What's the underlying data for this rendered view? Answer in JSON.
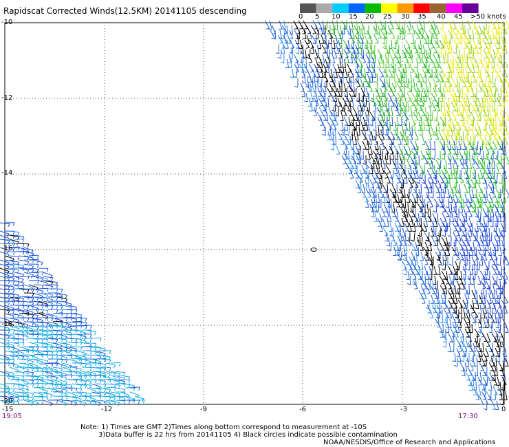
{
  "header": {
    "title": "Rapidscat Corrected Winds(12.5KM) 20141105 descending"
  },
  "legend": {
    "labels": [
      "0",
      "5",
      "10",
      "15",
      "20",
      "25",
      "30",
      "35",
      "40",
      "45",
      ">50 knots"
    ],
    "colors": [
      "#555555",
      "#aaaaaa",
      "#00ccff",
      "#0066ff",
      "#00bb00",
      "#ffff00",
      "#ff9900",
      "#ff0000",
      "#996633",
      "#ff00ff",
      "#660099"
    ]
  },
  "axes": {
    "y_ticks": [
      "-10",
      "-12",
      "-14",
      "-16",
      "-18",
      "-20"
    ],
    "x_ticks": [
      "-15",
      "-12",
      "-9",
      "-6",
      "-3",
      "0"
    ]
  },
  "times": {
    "left": "19:05",
    "right": "17:30"
  },
  "notes": {
    "line1": "Note: 1) Times are GMT 2)Times along bottom correspond to measurement at -10S",
    "line2": "3)Data buffer is 22 hrs from 20141105 4) Black circles indicate possible contamination",
    "line3": "NOAA/NESDIS/Office of Research and Applications"
  }
}
